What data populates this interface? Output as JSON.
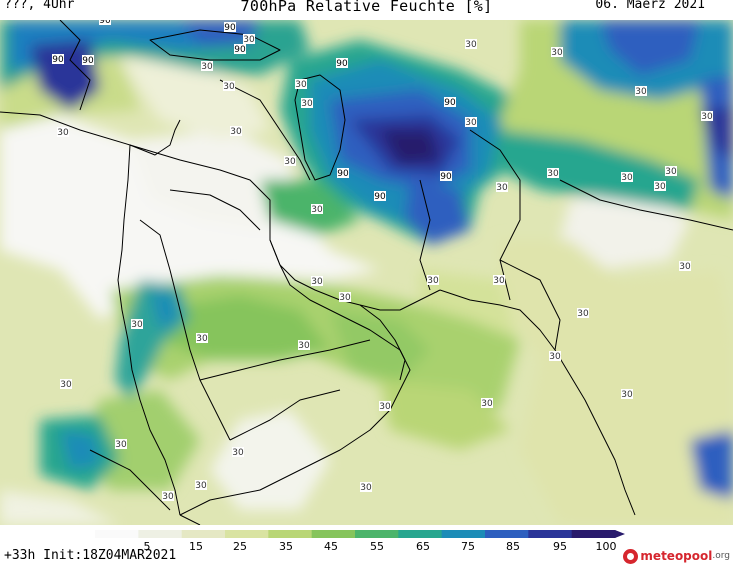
{
  "header": {
    "left": "???, 4Uhr",
    "title": "700hPa Relative Feuchte [%]",
    "date": "06. Maerz 2021"
  },
  "footer": {
    "init": "+33h Init:18Z04MAR2021",
    "brand": "meteopool",
    "brand_suffix": ".org"
  },
  "colorbar": {
    "labels": [
      "5",
      "15",
      "25",
      "35",
      "45",
      "55",
      "65",
      "75",
      "85",
      "95",
      "100"
    ],
    "colors": [
      "#fafafa",
      "#eef0e4",
      "#e5e8c4",
      "#d9e3a2",
      "#b9d676",
      "#86c45c",
      "#4cb46b",
      "#27a68f",
      "#1c8cb7",
      "#2d5fbf",
      "#2a3599",
      "#281a6c"
    ]
  },
  "map": {
    "contour_labels_30": [
      "30",
      "30",
      "30",
      "30",
      "30",
      "30",
      "30",
      "30",
      "30",
      "30",
      "30",
      "30",
      "30",
      "30",
      "30",
      "30",
      "30",
      "30",
      "30",
      "30",
      "30",
      "30",
      "30",
      "30",
      "30",
      "30",
      "30",
      "30",
      "30",
      "30",
      "30",
      "30",
      "30",
      "30",
      "30",
      "30",
      "30",
      "30"
    ],
    "contour_labels_90": [
      "90",
      "90",
      "90",
      "90",
      "90",
      "90",
      "90",
      "90",
      "90",
      "90"
    ]
  }
}
